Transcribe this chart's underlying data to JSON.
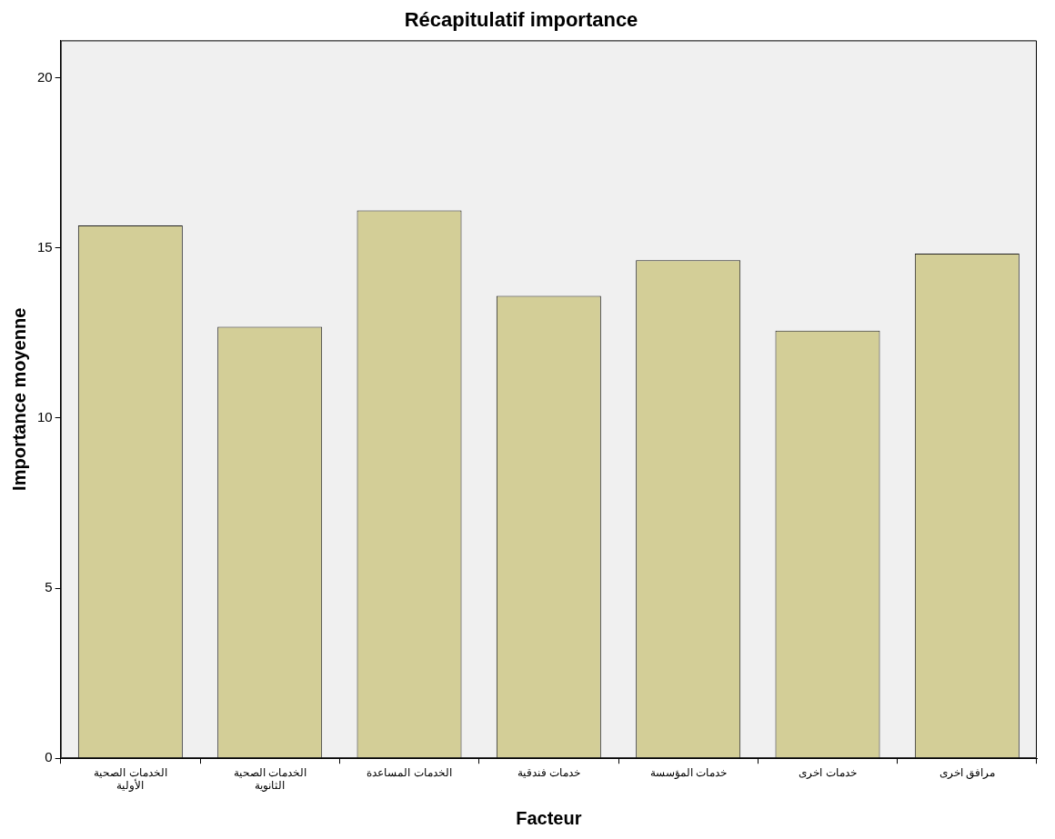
{
  "chart_data": {
    "type": "bar",
    "title": "Récapitulatif importance",
    "xlabel": "Facteur",
    "ylabel": "Importance moyenne",
    "categories": [
      "الخدمات الصحية الأولية",
      "الخدمات الصحية الثانوية",
      "الخدمات المساعدة",
      "خدمات فندقية",
      "خدمات المؤسسة",
      "خدمات اخرى",
      "مرافق اخرى"
    ],
    "values": [
      15.66,
      12.68,
      16.1,
      13.59,
      14.64,
      12.57,
      14.83
    ],
    "color": "#d3ce97",
    "ylim": [
      0,
      21.1
    ],
    "yticks": [
      0,
      5,
      10,
      15,
      20
    ],
    "grid": false,
    "legend": false
  }
}
